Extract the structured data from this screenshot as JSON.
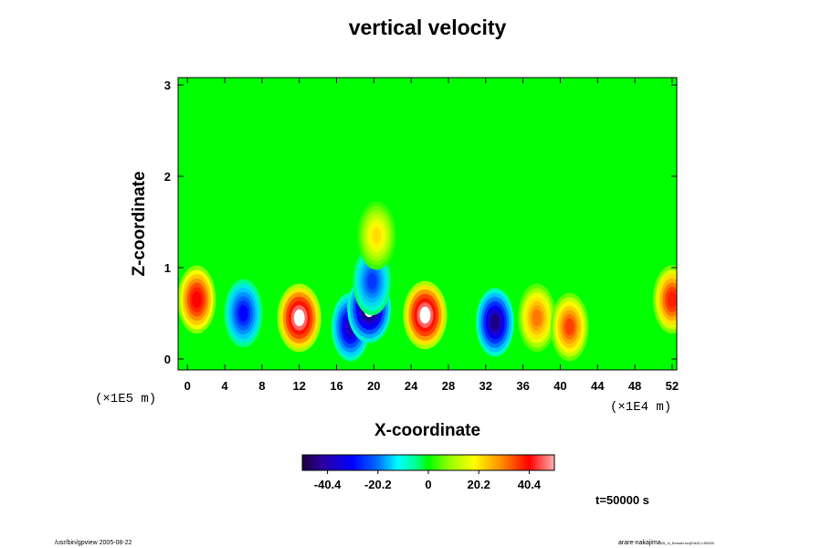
{
  "chart_data": {
    "type": "heatmap",
    "title": "vertical velocity",
    "xlabel": "X-coordinate",
    "ylabel": "Z-coordinate",
    "x_scale_label": "(×1E4 m)",
    "y_scale_label": "(×1E5 m)",
    "x_ticks": [
      0,
      4,
      8,
      12,
      16,
      20,
      24,
      28,
      32,
      36,
      40,
      44,
      48,
      52
    ],
    "y_ticks": [
      0,
      1,
      2,
      3
    ],
    "xlim": [
      -1,
      52.5
    ],
    "ylim": [
      -0.12,
      3.08
    ],
    "colorbar": {
      "range": [
        -50.5,
        50.5
      ],
      "tick_values": [
        -40.4,
        -20.2,
        0,
        20.2,
        40.4
      ],
      "tick_labels": [
        "-40.4",
        "-20.2",
        "0",
        "20.2",
        "40.4"
      ]
    },
    "features": [
      {
        "x": 1.0,
        "z": 0.65,
        "w": 40
      },
      {
        "x": 6.0,
        "z": 0.5,
        "w": -30
      },
      {
        "x": 12.0,
        "z": 0.45,
        "w": 52
      },
      {
        "x": 17.5,
        "z": 0.35,
        "w": -40
      },
      {
        "x": 19.5,
        "z": 0.55,
        "w": -52
      },
      {
        "x": 19.8,
        "z": 0.85,
        "w": -25
      },
      {
        "x": 20.3,
        "z": 1.35,
        "w": 15
      },
      {
        "x": 25.5,
        "z": 0.48,
        "w": 52
      },
      {
        "x": 33.0,
        "z": 0.4,
        "w": -45
      },
      {
        "x": 37.5,
        "z": 0.45,
        "w": 25
      },
      {
        "x": 41.0,
        "z": 0.35,
        "w": 30
      },
      {
        "x": 52.0,
        "z": 0.65,
        "w": 35
      }
    ],
    "annotation": "t=50000 s"
  },
  "footer": {
    "left": "/usr/bin/gpview 2005-08-22",
    "right": "arare-nakajima",
    "right_small": "05_ol_Kessler.nc@VelZ,t=50000"
  },
  "colors": {
    "background": "#ffffff",
    "field_zero": "#00ff00",
    "strong_positive": "#ff2020",
    "strong_negative": "#0000cc"
  }
}
